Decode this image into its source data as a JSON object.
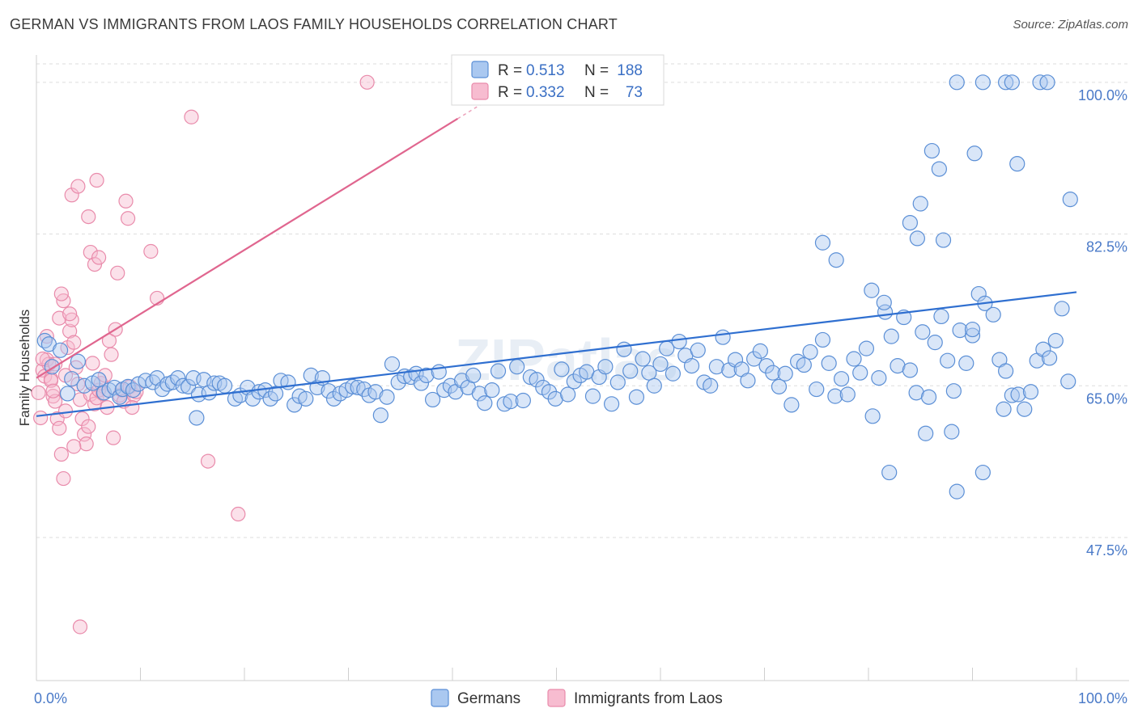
{
  "title": "GERMAN VS IMMIGRANTS FROM LAOS FAMILY HOUSEHOLDS CORRELATION CHART",
  "source": "Source: ZipAtlas.com",
  "watermark": "ZIPatlas",
  "colors": {
    "germans_fill": "#aac8f0",
    "germans_stroke": "#5b8fd6",
    "germans_line": "#2f6fd0",
    "laos_fill": "#f7bcd0",
    "laos_stroke": "#e98bab",
    "laos_line": "#e0668f",
    "tick_text": "#4a7ac8"
  },
  "legend": {
    "rows": [
      {
        "r_label": "R =",
        "r_value": "0.513",
        "n_label": "N =",
        "n_value": "188"
      },
      {
        "r_label": "R =",
        "r_value": "0.332",
        "n_label": "N =",
        "n_value": "73"
      }
    ]
  },
  "bottom_legend": [
    "Germans",
    "Immigrants from Laos"
  ],
  "chart_data": {
    "type": "scatter",
    "title": "GERMAN VS IMMIGRANTS FROM LAOS FAMILY HOUSEHOLDS CORRELATION CHART",
    "xlabel": "",
    "ylabel": "Family Households",
    "x_tick_labels": [
      "0.0%",
      "100.0%"
    ],
    "y_tick_labels": [
      "100.0%",
      "82.5%",
      "65.0%",
      "47.5%"
    ],
    "y_ticks": [
      100.0,
      82.5,
      65.0,
      47.5
    ],
    "xlim": [
      0,
      100
    ],
    "ylim": [
      31.0,
      102.5
    ],
    "grid": true,
    "legend_position": "top-center",
    "series": [
      {
        "name": "Germans",
        "r": 0.513,
        "n": 188,
        "trend": [
          [
            0,
            61.5
          ],
          [
            100,
            75.8
          ]
        ],
        "points": [
          [
            0.8,
            70.2
          ],
          [
            1.2,
            69.8
          ],
          [
            1.5,
            67.2
          ],
          [
            2.3,
            69.1
          ],
          [
            3.0,
            64.1
          ],
          [
            3.4,
            65.8
          ],
          [
            4.0,
            67.8
          ],
          [
            4.6,
            65.0
          ],
          [
            5.4,
            65.3
          ],
          [
            6.0,
            65.7
          ],
          [
            6.5,
            64.2
          ],
          [
            7.0,
            64.5
          ],
          [
            7.5,
            64.8
          ],
          [
            8.0,
            63.7
          ],
          [
            8.3,
            64.6
          ],
          [
            8.8,
            64.9
          ],
          [
            9.3,
            64.5
          ],
          [
            9.8,
            65.2
          ],
          [
            10.5,
            65.6
          ],
          [
            11.2,
            65.4
          ],
          [
            11.6,
            65.9
          ],
          [
            12.1,
            64.6
          ],
          [
            12.6,
            65.2
          ],
          [
            13.1,
            65.4
          ],
          [
            13.6,
            65.9
          ],
          [
            14.1,
            65.0
          ],
          [
            14.6,
            64.9
          ],
          [
            15.1,
            65.9
          ],
          [
            15.6,
            64.0
          ],
          [
            16.1,
            65.7
          ],
          [
            16.6,
            64.2
          ],
          [
            17.1,
            65.3
          ],
          [
            17.6,
            65.3
          ],
          [
            18.1,
            65.0
          ],
          [
            15.4,
            61.3
          ],
          [
            19.1,
            63.5
          ],
          [
            19.6,
            63.9
          ],
          [
            20.3,
            64.8
          ],
          [
            20.8,
            63.5
          ],
          [
            21.4,
            64.3
          ],
          [
            22.0,
            64.5
          ],
          [
            22.5,
            63.5
          ],
          [
            23.0,
            64.1
          ],
          [
            23.5,
            65.6
          ],
          [
            24.2,
            65.4
          ],
          [
            24.8,
            62.8
          ],
          [
            25.3,
            63.8
          ],
          [
            25.9,
            63.5
          ],
          [
            26.4,
            66.2
          ],
          [
            27.0,
            64.8
          ],
          [
            27.5,
            65.9
          ],
          [
            28.1,
            64.4
          ],
          [
            28.6,
            63.5
          ],
          [
            29.2,
            64.1
          ],
          [
            29.8,
            64.5
          ],
          [
            30.4,
            64.9
          ],
          [
            30.9,
            64.8
          ],
          [
            31.5,
            64.6
          ],
          [
            32.0,
            63.9
          ],
          [
            32.6,
            64.3
          ],
          [
            33.1,
            61.6
          ],
          [
            33.7,
            63.7
          ],
          [
            34.2,
            67.5
          ],
          [
            34.8,
            65.4
          ],
          [
            35.4,
            66.1
          ],
          [
            36.0,
            66.0
          ],
          [
            36.5,
            66.4
          ],
          [
            37.0,
            65.3
          ],
          [
            37.5,
            66.2
          ],
          [
            38.1,
            63.4
          ],
          [
            38.7,
            66.6
          ],
          [
            39.2,
            64.5
          ],
          [
            39.8,
            65.0
          ],
          [
            40.3,
            64.3
          ],
          [
            40.9,
            65.6
          ],
          [
            41.5,
            64.8
          ],
          [
            42.0,
            66.2
          ],
          [
            42.6,
            64.1
          ],
          [
            43.1,
            63.0
          ],
          [
            43.8,
            64.5
          ],
          [
            44.4,
            66.7
          ],
          [
            45.0,
            62.9
          ],
          [
            45.6,
            63.2
          ],
          [
            46.2,
            67.2
          ],
          [
            46.8,
            63.3
          ],
          [
            47.5,
            66.0
          ],
          [
            48.1,
            65.7
          ],
          [
            48.7,
            64.8
          ],
          [
            49.3,
            64.3
          ],
          [
            49.9,
            63.5
          ],
          [
            50.5,
            66.9
          ],
          [
            51.1,
            64.0
          ],
          [
            51.7,
            65.5
          ],
          [
            52.3,
            66.2
          ],
          [
            52.9,
            66.6
          ],
          [
            53.5,
            63.8
          ],
          [
            54.1,
            66.0
          ],
          [
            54.7,
            67.2
          ],
          [
            55.3,
            62.9
          ],
          [
            55.9,
            65.4
          ],
          [
            56.5,
            69.2
          ],
          [
            57.1,
            66.7
          ],
          [
            57.7,
            63.7
          ],
          [
            58.3,
            68.1
          ],
          [
            58.9,
            66.5
          ],
          [
            59.4,
            65.0
          ],
          [
            60.0,
            67.5
          ],
          [
            60.6,
            69.3
          ],
          [
            61.2,
            66.4
          ],
          [
            61.8,
            70.1
          ],
          [
            62.4,
            68.5
          ],
          [
            63.0,
            67.3
          ],
          [
            63.6,
            69.1
          ],
          [
            64.2,
            65.4
          ],
          [
            64.8,
            65.0
          ],
          [
            65.4,
            67.2
          ],
          [
            66.0,
            70.6
          ],
          [
            66.6,
            66.8
          ],
          [
            67.2,
            68.0
          ],
          [
            67.8,
            66.9
          ],
          [
            68.4,
            65.6
          ],
          [
            69.0,
            68.1
          ],
          [
            69.6,
            69.0
          ],
          [
            70.2,
            67.3
          ],
          [
            70.8,
            66.5
          ],
          [
            71.4,
            64.9
          ],
          [
            72.0,
            66.4
          ],
          [
            72.6,
            62.8
          ],
          [
            73.2,
            67.8
          ],
          [
            73.8,
            67.4
          ],
          [
            74.4,
            68.9
          ],
          [
            75.0,
            64.6
          ],
          [
            75.6,
            70.3
          ],
          [
            76.2,
            67.6
          ],
          [
            76.8,
            63.8
          ],
          [
            77.4,
            65.8
          ],
          [
            78.0,
            64.0
          ],
          [
            78.6,
            68.1
          ],
          [
            79.2,
            66.5
          ],
          [
            79.8,
            69.3
          ],
          [
            80.4,
            61.5
          ],
          [
            81.0,
            65.9
          ],
          [
            81.6,
            73.5
          ],
          [
            82.2,
            70.7
          ],
          [
            82.8,
            67.3
          ],
          [
            83.4,
            72.9
          ],
          [
            84.0,
            66.8
          ],
          [
            84.6,
            64.2
          ],
          [
            85.2,
            71.2
          ],
          [
            85.8,
            63.7
          ],
          [
            86.4,
            70.0
          ],
          [
            87.0,
            73.0
          ],
          [
            87.6,
            67.9
          ],
          [
            88.2,
            64.4
          ],
          [
            88.8,
            71.4
          ],
          [
            89.4,
            67.6
          ],
          [
            90.0,
            70.8
          ],
          [
            90.6,
            75.6
          ],
          [
            91.2,
            74.5
          ],
          [
            92.0,
            73.2
          ],
          [
            92.6,
            68.0
          ],
          [
            93.2,
            66.7
          ],
          [
            93.8,
            63.9
          ],
          [
            94.4,
            64.0
          ],
          [
            95.0,
            62.3
          ],
          [
            95.6,
            64.3
          ],
          [
            96.2,
            67.9
          ],
          [
            96.8,
            69.2
          ],
          [
            97.4,
            68.2
          ],
          [
            98.0,
            70.2
          ],
          [
            98.6,
            73.9
          ],
          [
            99.2,
            65.5
          ],
          [
            88.5,
            100.0
          ],
          [
            91.0,
            100.0
          ],
          [
            93.2,
            100.0
          ],
          [
            93.8,
            100.0
          ],
          [
            96.5,
            100.0
          ],
          [
            97.2,
            100.0
          ],
          [
            86.1,
            92.1
          ],
          [
            86.8,
            90.0
          ],
          [
            90.2,
            91.8
          ],
          [
            94.3,
            90.6
          ],
          [
            99.4,
            86.5
          ],
          [
            85.0,
            86.0
          ],
          [
            84.0,
            83.8
          ],
          [
            84.7,
            82.0
          ],
          [
            87.2,
            81.8
          ],
          [
            75.6,
            81.5
          ],
          [
            76.9,
            79.5
          ],
          [
            80.3,
            76.0
          ],
          [
            90.0,
            71.5
          ],
          [
            81.5,
            74.6
          ],
          [
            82.0,
            55.0
          ],
          [
            85.5,
            59.5
          ],
          [
            88.0,
            59.7
          ],
          [
            88.5,
            52.8
          ],
          [
            91.0,
            55.0
          ],
          [
            93.0,
            62.3
          ]
        ]
      },
      {
        "name": "Immigrants from Laos",
        "r": 0.332,
        "n": 73,
        "trend": [
          [
            0,
            65.9
          ],
          [
            40.5,
            95.8
          ]
        ],
        "points": [
          [
            0.2,
            64.2
          ],
          [
            0.4,
            61.3
          ],
          [
            0.6,
            66.8
          ],
          [
            0.8,
            66.1
          ],
          [
            1.0,
            68.0
          ],
          [
            1.2,
            67.5
          ],
          [
            1.4,
            65.8
          ],
          [
            1.6,
            63.8
          ],
          [
            1.8,
            63.2
          ],
          [
            2.0,
            61.2
          ],
          [
            2.2,
            60.1
          ],
          [
            2.4,
            57.1
          ],
          [
            2.6,
            54.3
          ],
          [
            2.8,
            66.2
          ],
          [
            3.0,
            69.4
          ],
          [
            3.2,
            71.3
          ],
          [
            3.4,
            72.6
          ],
          [
            3.6,
            70.0
          ],
          [
            3.8,
            67.1
          ],
          [
            4.0,
            65.2
          ],
          [
            4.2,
            63.4
          ],
          [
            4.4,
            61.2
          ],
          [
            4.6,
            59.4
          ],
          [
            4.8,
            58.3
          ],
          [
            5.0,
            60.3
          ],
          [
            5.2,
            64.0
          ],
          [
            5.4,
            67.6
          ],
          [
            5.6,
            62.9
          ],
          [
            5.8,
            63.6
          ],
          [
            6.0,
            64.5
          ],
          [
            6.2,
            65.3
          ],
          [
            6.4,
            64.1
          ],
          [
            6.6,
            66.2
          ],
          [
            6.8,
            62.5
          ],
          [
            7.0,
            70.2
          ],
          [
            7.2,
            68.6
          ],
          [
            7.4,
            59.0
          ],
          [
            7.6,
            71.5
          ],
          [
            7.8,
            78.0
          ],
          [
            8.0,
            63.9
          ],
          [
            8.2,
            64.5
          ],
          [
            8.4,
            63.2
          ],
          [
            8.6,
            86.3
          ],
          [
            8.8,
            84.3
          ],
          [
            9.0,
            64.9
          ],
          [
            9.4,
            63.9
          ],
          [
            1.8,
            67.5
          ],
          [
            2.2,
            72.8
          ],
          [
            2.6,
            74.8
          ],
          [
            3.2,
            73.3
          ],
          [
            2.4,
            75.6
          ],
          [
            3.4,
            87.0
          ],
          [
            4.0,
            88.0
          ],
          [
            5.0,
            84.5
          ],
          [
            5.8,
            88.7
          ],
          [
            5.2,
            80.4
          ],
          [
            5.6,
            79.0
          ],
          [
            6.0,
            79.8
          ],
          [
            11.0,
            80.5
          ],
          [
            11.6,
            75.1
          ],
          [
            14.9,
            96.0
          ],
          [
            16.5,
            56.3
          ],
          [
            19.4,
            50.2
          ],
          [
            31.8,
            100.0
          ],
          [
            0.6,
            68.1
          ],
          [
            1.0,
            70.7
          ],
          [
            1.4,
            65.6
          ],
          [
            1.6,
            64.4
          ],
          [
            2.8,
            62.1
          ],
          [
            3.6,
            58.0
          ],
          [
            4.2,
            37.2
          ],
          [
            9.2,
            62.5
          ],
          [
            9.6,
            64.3
          ]
        ]
      }
    ]
  }
}
